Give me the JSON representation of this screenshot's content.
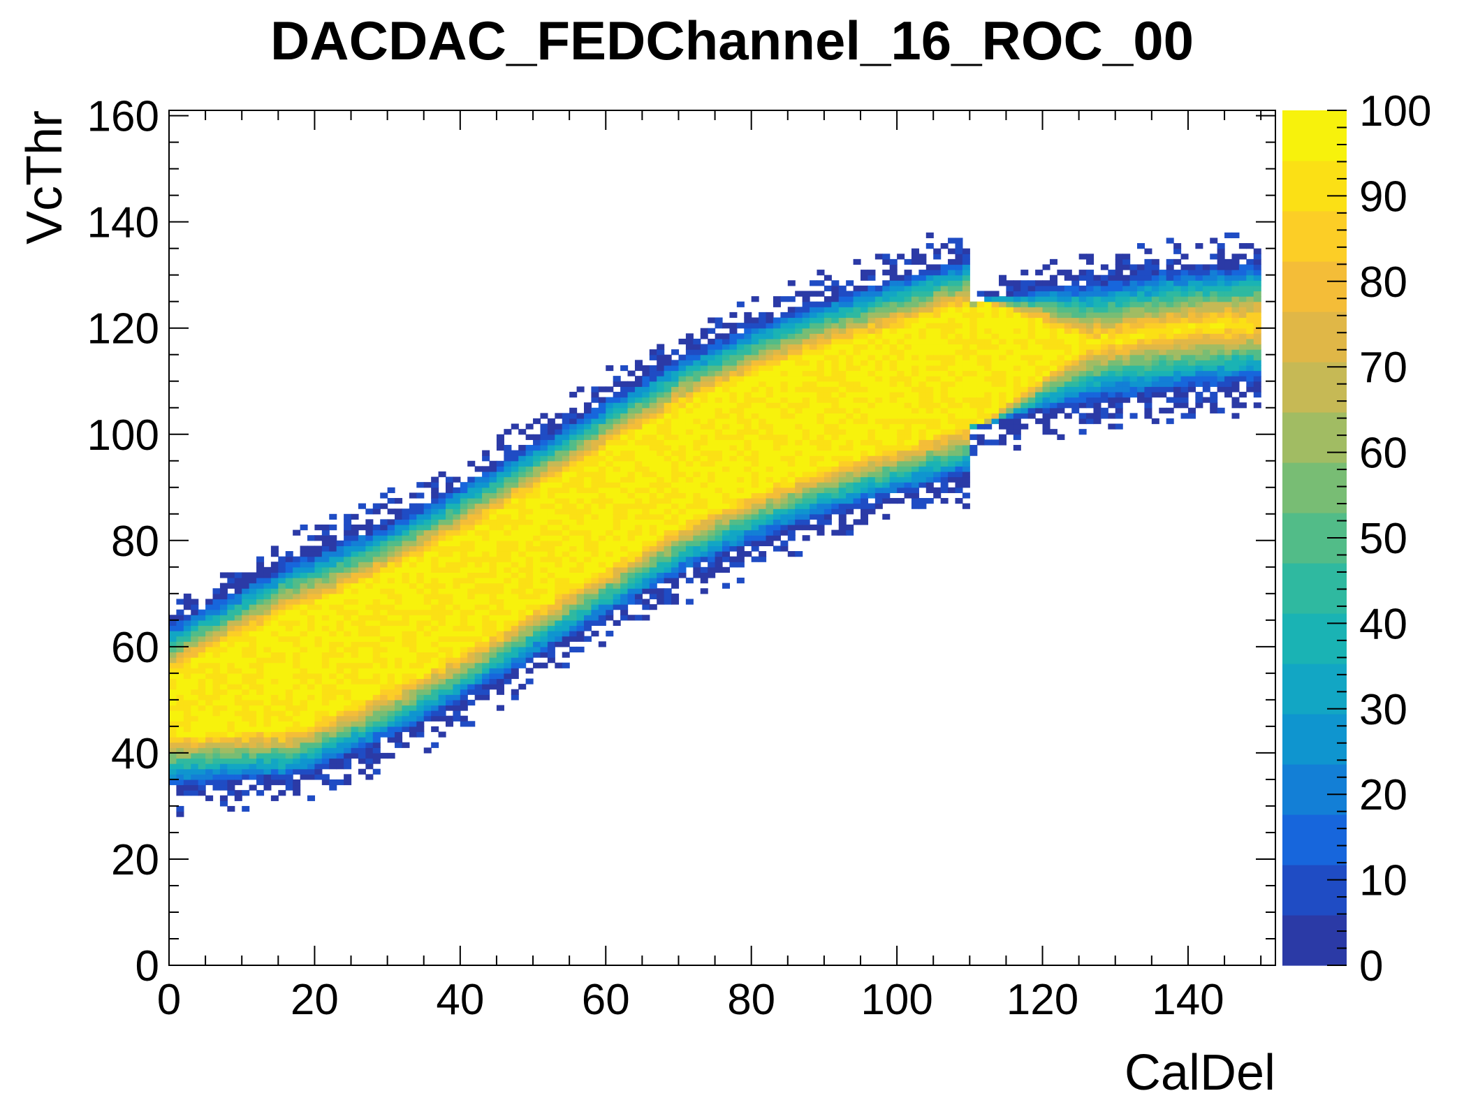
{
  "chart_data": {
    "type": "heatmap",
    "title": "DACDAC_FEDChannel_16_ROC_00",
    "xlabel": "CalDel",
    "ylabel": "VcThr",
    "xlim": [
      0,
      152
    ],
    "ylim": [
      0,
      161
    ],
    "xticks": [
      0,
      20,
      40,
      60,
      80,
      100,
      120,
      140
    ],
    "xtick_labels": [
      "0",
      "20",
      "40",
      "60",
      "80",
      "100",
      "120",
      "140"
    ],
    "yticks": [
      0,
      20,
      40,
      60,
      80,
      100,
      120,
      140,
      160
    ],
    "ytick_labels": [
      "0",
      "20",
      "40",
      "60",
      "80",
      "100",
      "120",
      "140",
      "160"
    ],
    "colorbar": {
      "min": 0,
      "max": 100,
      "ticks": [
        0,
        10,
        20,
        30,
        40,
        50,
        60,
        70,
        80,
        90,
        100
      ],
      "tick_labels": [
        "0",
        "10",
        "20",
        "30",
        "40",
        "50",
        "60",
        "70",
        "80",
        "90",
        "100"
      ],
      "palette": [
        "#2b3aa6",
        "#1f4cc4",
        "#1766dc",
        "#137fd6",
        "#0f95cf",
        "#12a6c4",
        "#1ab3b4",
        "#2fb9a0",
        "#52bc88",
        "#78bd74",
        "#a1bc63",
        "#c6b955",
        "#e0b747",
        "#f4bd38",
        "#fcce26",
        "#fbe015",
        "#f7f20c"
      ]
    },
    "band_centerline": {
      "x": [
        0,
        10,
        20,
        30,
        40,
        50,
        60,
        70,
        80,
        90,
        100,
        110,
        120,
        130,
        140,
        150
      ],
      "y": [
        49,
        53,
        57,
        63,
        70,
        78,
        86,
        94,
        100,
        105,
        109,
        113,
        116,
        118,
        120,
        121
      ]
    },
    "band_fill_percent_peak": 100,
    "grid": false
  }
}
